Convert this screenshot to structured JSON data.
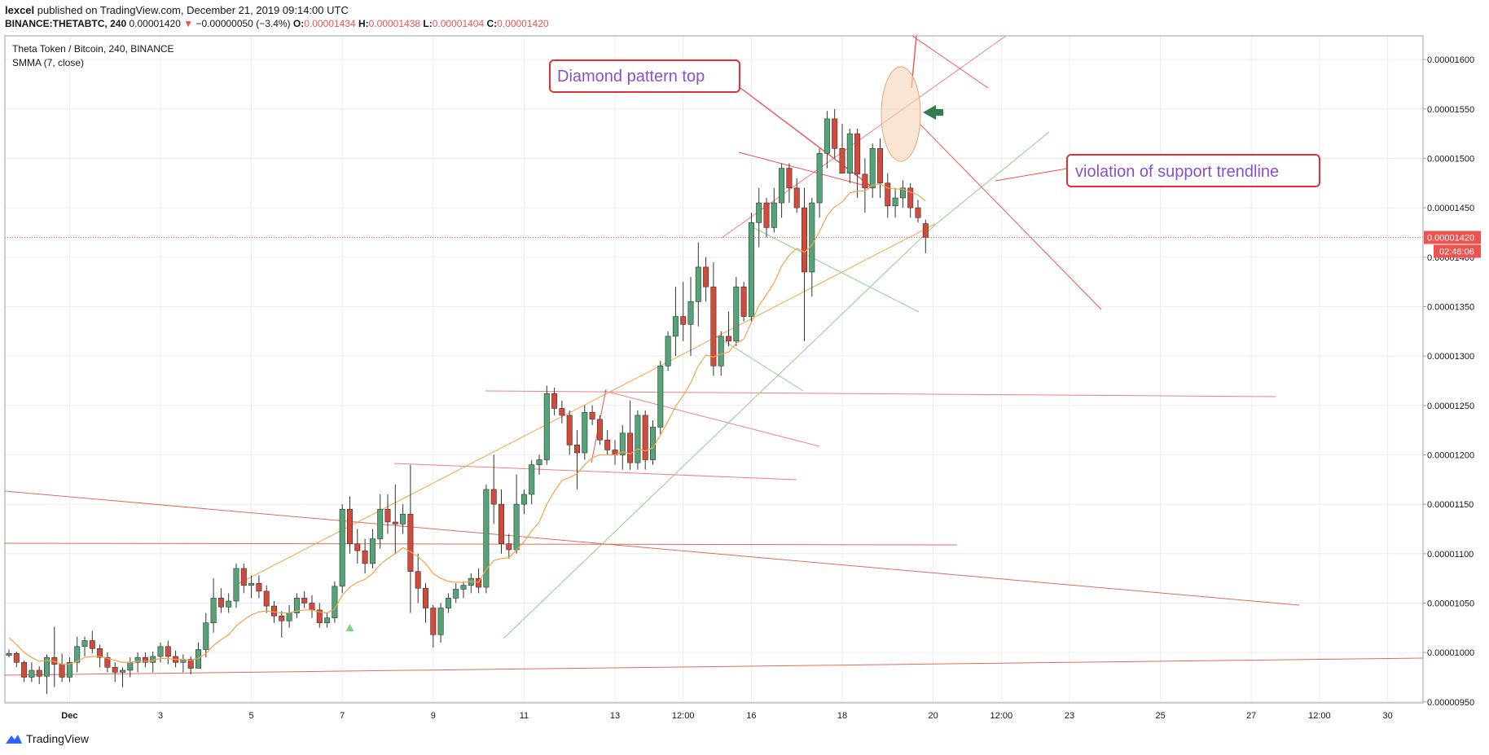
{
  "header": {
    "author": "lexcel",
    "published": "published on TradingView.com, December 21, 2019 09:14:00 UTC",
    "symbol": "BINANCE:THETABTC, 240",
    "last": "0.00001420",
    "arrow": "▼",
    "change": "−0.00000050 (−3.4%)",
    "o_label": "O:",
    "o": "0.00001434",
    "h_label": "H:",
    "h": "0.00001438",
    "l_label": "L:",
    "l": "0.00001404",
    "c_label": "C:",
    "c": "0.00001420"
  },
  "legend": {
    "title": "Theta Token / Bitcoin, 240, BINANCE",
    "indicator": "SMMA (7, close)"
  },
  "annotations": {
    "diamond": "Diamond  pattern top",
    "violation": "violation of support trendline"
  },
  "price_tag": "0.00001420",
  "countdown": "02:46:06",
  "brand": "TradingView",
  "colors": {
    "up": "#53a578",
    "down": "#d44a3a",
    "annotation_text": "#8a4fd0",
    "annotation_border": "#e0303a",
    "smma": "#f5a04a"
  },
  "chart_data": {
    "type": "candlestick",
    "interval": "240",
    "y_ticks": [
      "0.00001600",
      "0.00001550",
      "0.00001500",
      "0.00001450",
      "0.00001400",
      "0.00001350",
      "0.00001300",
      "0.00001250",
      "0.00001200",
      "0.00001150",
      "0.00001100",
      "0.00001050",
      "0.00001000",
      "0.00000950"
    ],
    "ylim": [
      9.49e-06,
      1.624e-05
    ],
    "x_ticks": [
      {
        "label": "Dec",
        "i": 8
      },
      {
        "label": "3",
        "i": 20
      },
      {
        "label": "5",
        "i": 32
      },
      {
        "label": "7",
        "i": 44
      },
      {
        "label": "9",
        "i": 56
      },
      {
        "label": "11",
        "i": 68
      },
      {
        "label": "13",
        "i": 80
      },
      {
        "label": "12:00",
        "i": 89
      },
      {
        "label": "16",
        "i": 98
      },
      {
        "label": "18",
        "i": 110
      },
      {
        "label": "20",
        "i": 122
      },
      {
        "label": "12:00",
        "i": 131
      },
      {
        "label": "23",
        "i": 140
      },
      {
        "label": "25",
        "i": 152
      },
      {
        "label": "27",
        "i": 164
      },
      {
        "label": "12:00",
        "i": 173
      },
      {
        "label": "30",
        "i": 182
      }
    ],
    "candles": [
      [
        9.97e-06,
        1.003e-05,
        9.95e-06,
        9.99e-06
      ],
      [
        9.99e-06,
        1.001e-05,
        9.85e-06,
        9.9e-06
      ],
      [
        9.9e-06,
        9.92e-06,
        9.7e-06,
        9.75e-06
      ],
      [
        9.75e-06,
        9.9e-06,
        9.7e-06,
        9.82e-06
      ],
      [
        9.82e-06,
        9.86e-06,
        9.68e-06,
        9.76e-06
      ],
      [
        9.76e-06,
        9.98e-06,
        9.58e-06,
        9.95e-06
      ],
      [
        9.95e-06,
        1.026e-05,
        9.65e-06,
        9.88e-06
      ],
      [
        9.88e-06,
        9.99e-06,
        9.7e-06,
        9.75e-06
      ],
      [
        9.75e-06,
        9.95e-06,
        9.7e-06,
        9.9e-06
      ],
      [
        9.9e-06,
        1.016e-05,
        9.8e-06,
        1.006e-05
      ],
      [
        1.006e-05,
        1.016e-05,
        9.96e-06,
        1.012e-05
      ],
      [
        1.012e-05,
        1.022e-05,
        9.99e-06,
        1.004e-05
      ],
      [
        1.004e-05,
        1.008e-05,
        9.85e-06,
        9.95e-06
      ],
      [
        9.95e-06,
        1e-05,
        9.8e-06,
        9.85e-06
      ],
      [
        9.85e-06,
        9.9e-06,
        9.7e-06,
        9.8e-06
      ],
      [
        9.8e-06,
        9.85e-06,
        9.65e-06,
        9.82e-06
      ],
      [
        9.82e-06,
        9.95e-06,
        9.75e-06,
        9.9e-06
      ],
      [
        9.9e-06,
        1e-05,
        9.8e-06,
        9.95e-06
      ],
      [
        9.95e-06,
        1e-05,
        9.85e-06,
        9.9e-06
      ],
      [
        9.9e-06,
        1.001e-05,
        9.8e-06,
        9.96e-06
      ],
      [
        9.96e-06,
        1.01e-05,
        9.9e-06,
        1.006e-05
      ],
      [
        1.006e-05,
        1.012e-05,
        9.88e-06,
        9.96e-06
      ],
      [
        9.96e-06,
        1.002e-05,
        9.85e-06,
        9.9e-06
      ],
      [
        9.9e-06,
        9.98e-06,
        9.8e-06,
        9.93e-06
      ],
      [
        9.93e-06,
        9.96e-06,
        9.78e-06,
        9.84e-06
      ],
      [
        9.84e-06,
        1.01e-05,
        9.84e-06,
        1.003e-05
      ],
      [
        1.003e-05,
        1.04e-05,
        9.95e-06,
        1.03e-05
      ],
      [
        1.03e-05,
        1.075e-05,
        1.02e-05,
        1.055e-05
      ],
      [
        1.055e-05,
        1.065e-05,
        1.04e-05,
        1.046e-05
      ],
      [
        1.046e-05,
        1.06e-05,
        1.04e-05,
        1.052e-05
      ],
      [
        1.052e-05,
        1.09e-05,
        1.045e-05,
        1.085e-05
      ],
      [
        1.085e-05,
        1.09e-05,
        1.06e-05,
        1.068e-05
      ],
      [
        1.068e-05,
        1.078e-05,
        1.055e-05,
        1.07e-05
      ],
      [
        1.07e-05,
        1.078e-05,
        1.055e-05,
        1.062e-05
      ],
      [
        1.062e-05,
        1.068e-05,
        1.04e-05,
        1.047e-05
      ],
      [
        1.047e-05,
        1.052e-05,
        1.03e-05,
        1.037e-05
      ],
      [
        1.037e-05,
        1.042e-05,
        1.015e-05,
        1.032e-05
      ],
      [
        1.032e-05,
        1.048e-05,
        1.025e-05,
        1.04e-05
      ],
      [
        1.04e-05,
        1.06e-05,
        1.035e-05,
        1.055e-05
      ],
      [
        1.055e-05,
        1.062e-05,
        1.045e-05,
        1.05e-05
      ],
      [
        1.05e-05,
        1.058e-05,
        1.035e-05,
        1.043e-05
      ],
      [
        1.043e-05,
        1.05e-05,
        1.025e-05,
        1.03e-05
      ],
      [
        1.03e-05,
        1.04e-05,
        1.025e-05,
        1.035e-05
      ],
      [
        1.035e-05,
        1.072e-05,
        1.03e-05,
        1.067e-05
      ],
      [
        1.067e-05,
        1.15e-05,
        1.06e-05,
        1.145e-05
      ],
      [
        1.145e-05,
        1.158e-05,
        1.1e-05,
        1.11e-05
      ],
      [
        1.11e-05,
        1.125e-05,
        1.09e-05,
        1.103e-05
      ],
      [
        1.103e-05,
        1.115e-05,
        1.08e-05,
        1.09e-05
      ],
      [
        1.09e-05,
        1.125e-05,
        1.085e-05,
        1.115e-05
      ],
      [
        1.115e-05,
        1.16e-05,
        1.105e-05,
        1.145e-05
      ],
      [
        1.145e-05,
        1.16e-05,
        1.12e-05,
        1.132e-05
      ],
      [
        1.132e-05,
        1.17e-05,
        1.1e-05,
        1.13e-05
      ],
      [
        1.13e-05,
        1.15e-05,
        1.12e-05,
        1.14e-05
      ],
      [
        1.14e-05,
        1.19e-05,
        1.04e-05,
        1.082e-05
      ],
      [
        1.082e-05,
        1.1e-05,
        1.05e-05,
        1.065e-05
      ],
      [
        1.065e-05,
        1.07e-05,
        1.03e-05,
        1.045e-05
      ],
      [
        1.045e-05,
        1.048e-05,
        1.005e-05,
        1.018e-05
      ],
      [
        1.018e-05,
        1.05e-05,
        1.01e-05,
        1.045e-05
      ],
      [
        1.045e-05,
        1.06e-05,
        1.04e-05,
        1.055e-05
      ],
      [
        1.055e-05,
        1.07e-05,
        1.05e-05,
        1.064e-05
      ],
      [
        1.064e-05,
        1.072e-05,
        1.055e-05,
        1.068e-05
      ],
      [
        1.068e-05,
        1.08e-05,
        1.06e-05,
        1.075e-05
      ],
      [
        1.075e-05,
        1.085e-05,
        1.06e-05,
        1.066e-05
      ],
      [
        1.066e-05,
        1.17e-05,
        1.06e-05,
        1.165e-05
      ],
      [
        1.165e-05,
        1.2e-05,
        1.13e-05,
        1.15e-05
      ],
      [
        1.15e-05,
        1.165e-05,
        1.1e-05,
        1.11e-05
      ],
      [
        1.11e-05,
        1.12e-05,
        1.095e-05,
        1.104e-05
      ],
      [
        1.104e-05,
        1.18e-05,
        1.1e-05,
        1.15e-05
      ],
      [
        1.15e-05,
        1.165e-05,
        1.14e-05,
        1.16e-05
      ],
      [
        1.16e-05,
        1.195e-05,
        1.15e-05,
        1.19e-05
      ],
      [
        1.19e-05,
        1.2e-05,
        1.18e-05,
        1.195e-05
      ],
      [
        1.195e-05,
        1.27e-05,
        1.19e-05,
        1.262e-05
      ],
      [
        1.262e-05,
        1.268e-05,
        1.24e-05,
        1.247e-05
      ],
      [
        1.247e-05,
        1.255e-05,
        1.232e-05,
        1.24e-05
      ],
      [
        1.24e-05,
        1.245e-05,
        1.2e-05,
        1.21e-05
      ],
      [
        1.21e-05,
        1.225e-05,
        1.165e-05,
        1.202e-05
      ],
      [
        1.202e-05,
        1.25e-05,
        1.195e-05,
        1.243e-05
      ],
      [
        1.243e-05,
        1.25e-05,
        1.23e-05,
        1.236e-05
      ],
      [
        1.236e-05,
        1.24e-05,
        1.21e-05,
        1.215e-05
      ],
      [
        1.215e-05,
        1.225e-05,
        1.2e-05,
        1.205e-05
      ],
      [
        1.205e-05,
        1.215e-05,
        1.19e-05,
        1.2e-05
      ],
      [
        1.2e-05,
        1.23e-05,
        1.185e-05,
        1.222e-05
      ],
      [
        1.222e-05,
        1.255e-05,
        1.185e-05,
        1.192e-05
      ],
      [
        1.192e-05,
        1.245e-05,
        1.185e-05,
        1.24e-05
      ],
      [
        1.24e-05,
        1.245e-05,
        1.185e-05,
        1.195e-05
      ],
      [
        1.195e-05,
        1.235e-05,
        1.19e-05,
        1.228e-05
      ],
      [
        1.228e-05,
        1.295e-05,
        1.22e-05,
        1.29e-05
      ],
      [
        1.29e-05,
        1.325e-05,
        1.285e-05,
        1.32e-05
      ],
      [
        1.32e-05,
        1.37e-05,
        1.3e-05,
        1.34e-05
      ],
      [
        1.34e-05,
        1.375e-05,
        1.315e-05,
        1.332e-05
      ],
      [
        1.332e-05,
        1.38e-05,
        1.3e-05,
        1.355e-05
      ],
      [
        1.355e-05,
        1.415e-05,
        1.33e-05,
        1.39e-05
      ],
      [
        1.39e-05,
        1.4e-05,
        1.355e-05,
        1.37e-05
      ],
      [
        1.37e-05,
        1.395e-05,
        1.28e-05,
        1.29e-05
      ],
      [
        1.29e-05,
        1.325e-05,
        1.28e-05,
        1.32e-05
      ],
      [
        1.32e-05,
        1.345e-05,
        1.31e-05,
        1.315e-05
      ],
      [
        1.315e-05,
        1.38e-05,
        1.31e-05,
        1.37e-05
      ],
      [
        1.37e-05,
        1.375e-05,
        1.335e-05,
        1.34e-05
      ],
      [
        1.34e-05,
        1.445e-05,
        1.335e-05,
        1.435e-05
      ],
      [
        1.435e-05,
        1.47e-05,
        1.41e-05,
        1.455e-05
      ],
      [
        1.455e-05,
        1.46e-05,
        1.42e-05,
        1.43e-05
      ],
      [
        1.43e-05,
        1.47e-05,
        1.425e-05,
        1.455e-05
      ],
      [
        1.455e-05,
        1.495e-05,
        1.44e-05,
        1.49e-05
      ],
      [
        1.49e-05,
        1.495e-05,
        1.455e-05,
        1.47e-05
      ],
      [
        1.47e-05,
        1.48e-05,
        1.445e-05,
        1.45e-05
      ],
      [
        1.45e-05,
        1.47e-05,
        1.315e-05,
        1.385e-05
      ],
      [
        1.385e-05,
        1.46e-05,
        1.36e-05,
        1.455e-05
      ],
      [
        1.455e-05,
        1.51e-05,
        1.44e-05,
        1.505e-05
      ],
      [
        1.505e-05,
        1.548e-05,
        1.49e-05,
        1.54e-05
      ],
      [
        1.54e-05,
        1.55e-05,
        1.5e-05,
        1.51e-05
      ],
      [
        1.51e-05,
        1.535e-05,
        1.485e-05,
        1.485e-05
      ],
      [
        1.485e-05,
        1.53e-05,
        1.475e-05,
        1.525e-05
      ],
      [
        1.525e-05,
        1.53e-05,
        1.46e-05,
        1.484e-05
      ],
      [
        1.484e-05,
        1.5e-05,
        1.445e-05,
        1.47e-05
      ],
      [
        1.47e-05,
        1.515e-05,
        1.46e-05,
        1.51e-05
      ],
      [
        1.51e-05,
        1.52e-05,
        1.46e-05,
        1.475e-05
      ],
      [
        1.475e-05,
        1.485e-05,
        1.44e-05,
        1.452e-05
      ],
      [
        1.452e-05,
        1.47e-05,
        1.44e-05,
        1.46e-05
      ],
      [
        1.46e-05,
        1.478e-05,
        1.45e-05,
        1.47e-05
      ],
      [
        1.47e-05,
        1.475e-05,
        1.44e-05,
        1.45e-05
      ],
      [
        1.45e-05,
        1.458e-05,
        1.435e-05,
        1.44e-05
      ],
      [
        1.434e-05,
        1.438e-05,
        1.404e-05,
        1.42e-05
      ]
    ],
    "smma": [
      1.015e-05,
      1.008e-05,
      1e-05,
      9.95e-06,
      9.91e-06,
      9.92e-06,
      9.91e-06,
      9.88e-06,
      9.88e-06,
      9.91e-06,
      9.95e-06,
      9.96e-06,
      9.96e-06,
      9.94e-06,
      9.92e-06,
      9.9e-06,
      9.9e-06,
      9.91e-06,
      9.91e-06,
      9.92e-06,
      9.94e-06,
      9.94e-06,
      9.93e-06,
      9.93e-06,
      9.92e-06,
      9.94e-06,
      9.99e-06,
      1.007e-05,
      1.013e-05,
      1.018e-05,
      1.027e-05,
      1.033e-05,
      1.038e-05,
      1.041e-05,
      1.042e-05,
      1.041e-05,
      1.04e-05,
      1.04e-05,
      1.042e-05,
      1.043e-05,
      1.043e-05,
      1.041e-05,
      1.04e-05,
      1.044e-05,
      1.058e-05,
      1.066e-05,
      1.071e-05,
      1.074e-05,
      1.08e-05,
      1.089e-05,
      1.095e-05,
      1.1e-05,
      1.106e-05,
      1.102e-05,
      1.097e-05,
      1.09e-05,
      1.08e-05,
      1.075e-05,
      1.072e-05,
      1.071e-05,
      1.071e-05,
      1.072e-05,
      1.071e-05,
      1.084e-05,
      1.093e-05,
      1.095e-05,
      1.096e-05,
      1.104e-05,
      1.112e-05,
      1.123e-05,
      1.132e-05,
      1.15e-05,
      1.163e-05,
      1.174e-05,
      1.177e-05,
      1.181e-05,
      1.19e-05,
      1.197e-05,
      1.2e-05,
      1.2e-05,
      1.2e-05,
      1.203e-05,
      1.201e-05,
      1.206e-05,
      1.204e-05,
      1.207e-05,
      1.22e-05,
      1.234e-05,
      1.249e-05,
      1.26e-05,
      1.273e-05,
      1.29e-05,
      1.301e-05,
      1.299e-05,
      1.302e-05,
      1.304e-05,
      1.313e-05,
      1.317e-05,
      1.334e-05,
      1.351e-05,
      1.362e-05,
      1.374e-05,
      1.391e-05,
      1.402e-05,
      1.409e-05,
      1.405e-05,
      1.412e-05,
      1.426e-05,
      1.442e-05,
      1.451e-05,
      1.456e-05,
      1.465e-05,
      1.467e-05,
      1.467e-05,
      1.473e-05,
      1.474e-05,
      1.47e-05,
      1.469e-05,
      1.469e-05,
      1.466e-05,
      1.463e-05,
      1.457e-05
    ],
    "buy_signal_index": 45
  }
}
